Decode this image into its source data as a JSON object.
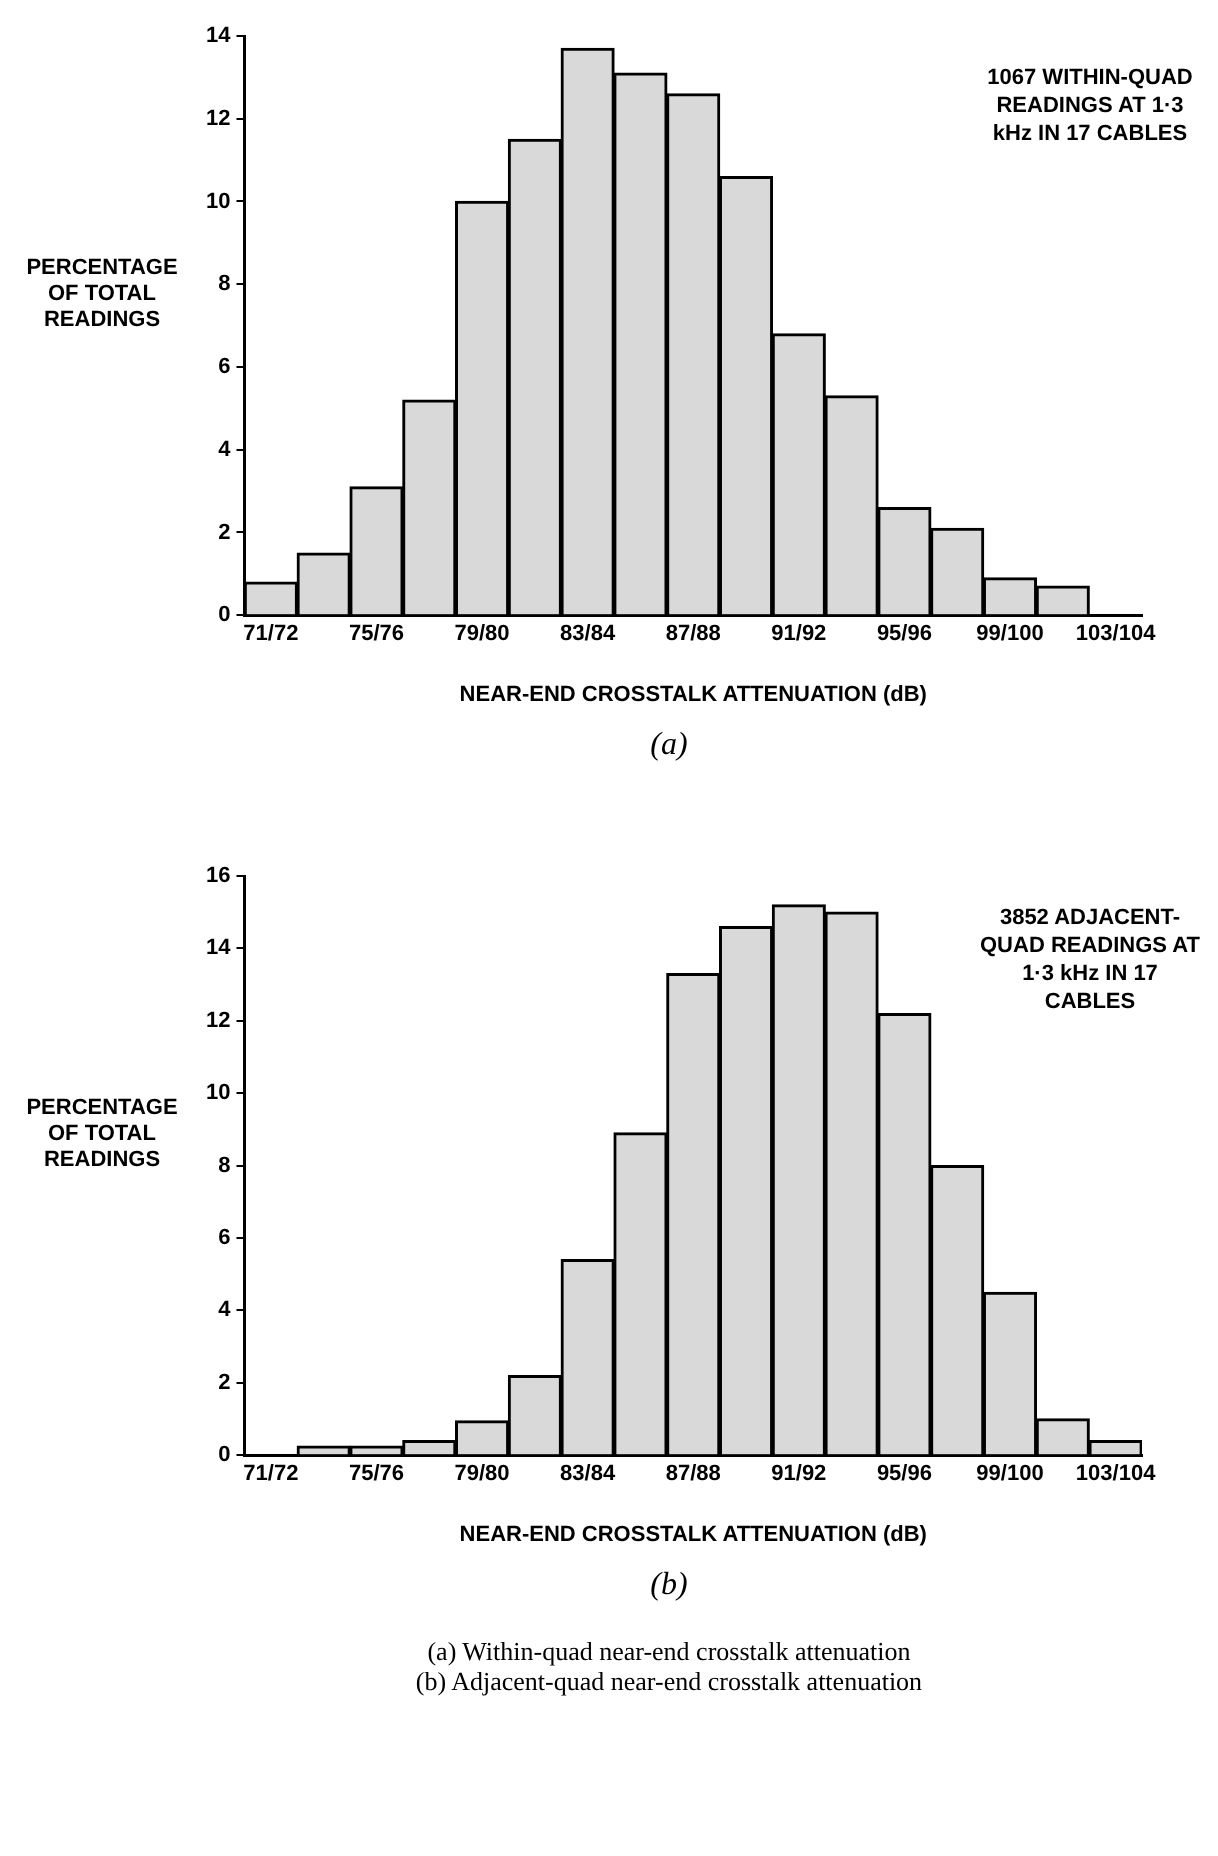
{
  "chart_data": [
    {
      "type": "bar",
      "ylabel": "PERCENTAGE OF TOTAL READINGS",
      "xlabel": "NEAR-END CROSSTALK ATTENUATION (dB)",
      "categories": [
        "71/72",
        null,
        "75/76",
        null,
        "79/80",
        null,
        "83/84",
        null,
        "87/88",
        null,
        "91/92",
        null,
        "95/96",
        null,
        "99/100",
        null,
        "103/104"
      ],
      "values": [
        0.8,
        1.5,
        3.1,
        5.2,
        10.0,
        11.5,
        13.7,
        13.1,
        12.6,
        10.6,
        6.8,
        5.3,
        2.6,
        2.1,
        0.9,
        0.7,
        null
      ],
      "color": "#d9d9d9",
      "ylim": [
        0,
        14
      ],
      "yticks": [
        0,
        2,
        4,
        6,
        8,
        10,
        12,
        14
      ],
      "grid": false,
      "legend": false,
      "annotations": [
        "1067 WITHIN-QUAD READINGS AT 1·3 kHz IN 17 CABLES",
        "(a)"
      ]
    },
    {
      "type": "bar",
      "ylabel": "PERCENTAGE OF TOTAL READINGS",
      "xlabel": "NEAR-END CROSSTALK ATTENUATION (dB)",
      "categories": [
        "71/72",
        null,
        "75/76",
        null,
        "79/80",
        null,
        "83/84",
        null,
        "87/88",
        null,
        "91/92",
        null,
        "95/96",
        null,
        "99/100",
        null,
        "103/104"
      ],
      "values": [
        null,
        0.25,
        0.25,
        0.4,
        0.95,
        2.2,
        5.4,
        8.9,
        13.3,
        14.6,
        15.2,
        15.0,
        12.2,
        8.0,
        4.5,
        1.0,
        0.4
      ],
      "color": "#d9d9d9",
      "ylim": [
        0,
        16
      ],
      "yticks": [
        0,
        2,
        4,
        6,
        8,
        10,
        12,
        14,
        16
      ],
      "grid": false,
      "legend": false,
      "annotations": [
        "3852 ADJACENT-QUAD READINGS AT 1·3 kHz IN 17 CABLES",
        "(b)",
        "(a) Within-quad near-end crosstalk attenuation",
        "(b) Adjacent-quad near-end crosstalk attenuation"
      ]
    }
  ]
}
